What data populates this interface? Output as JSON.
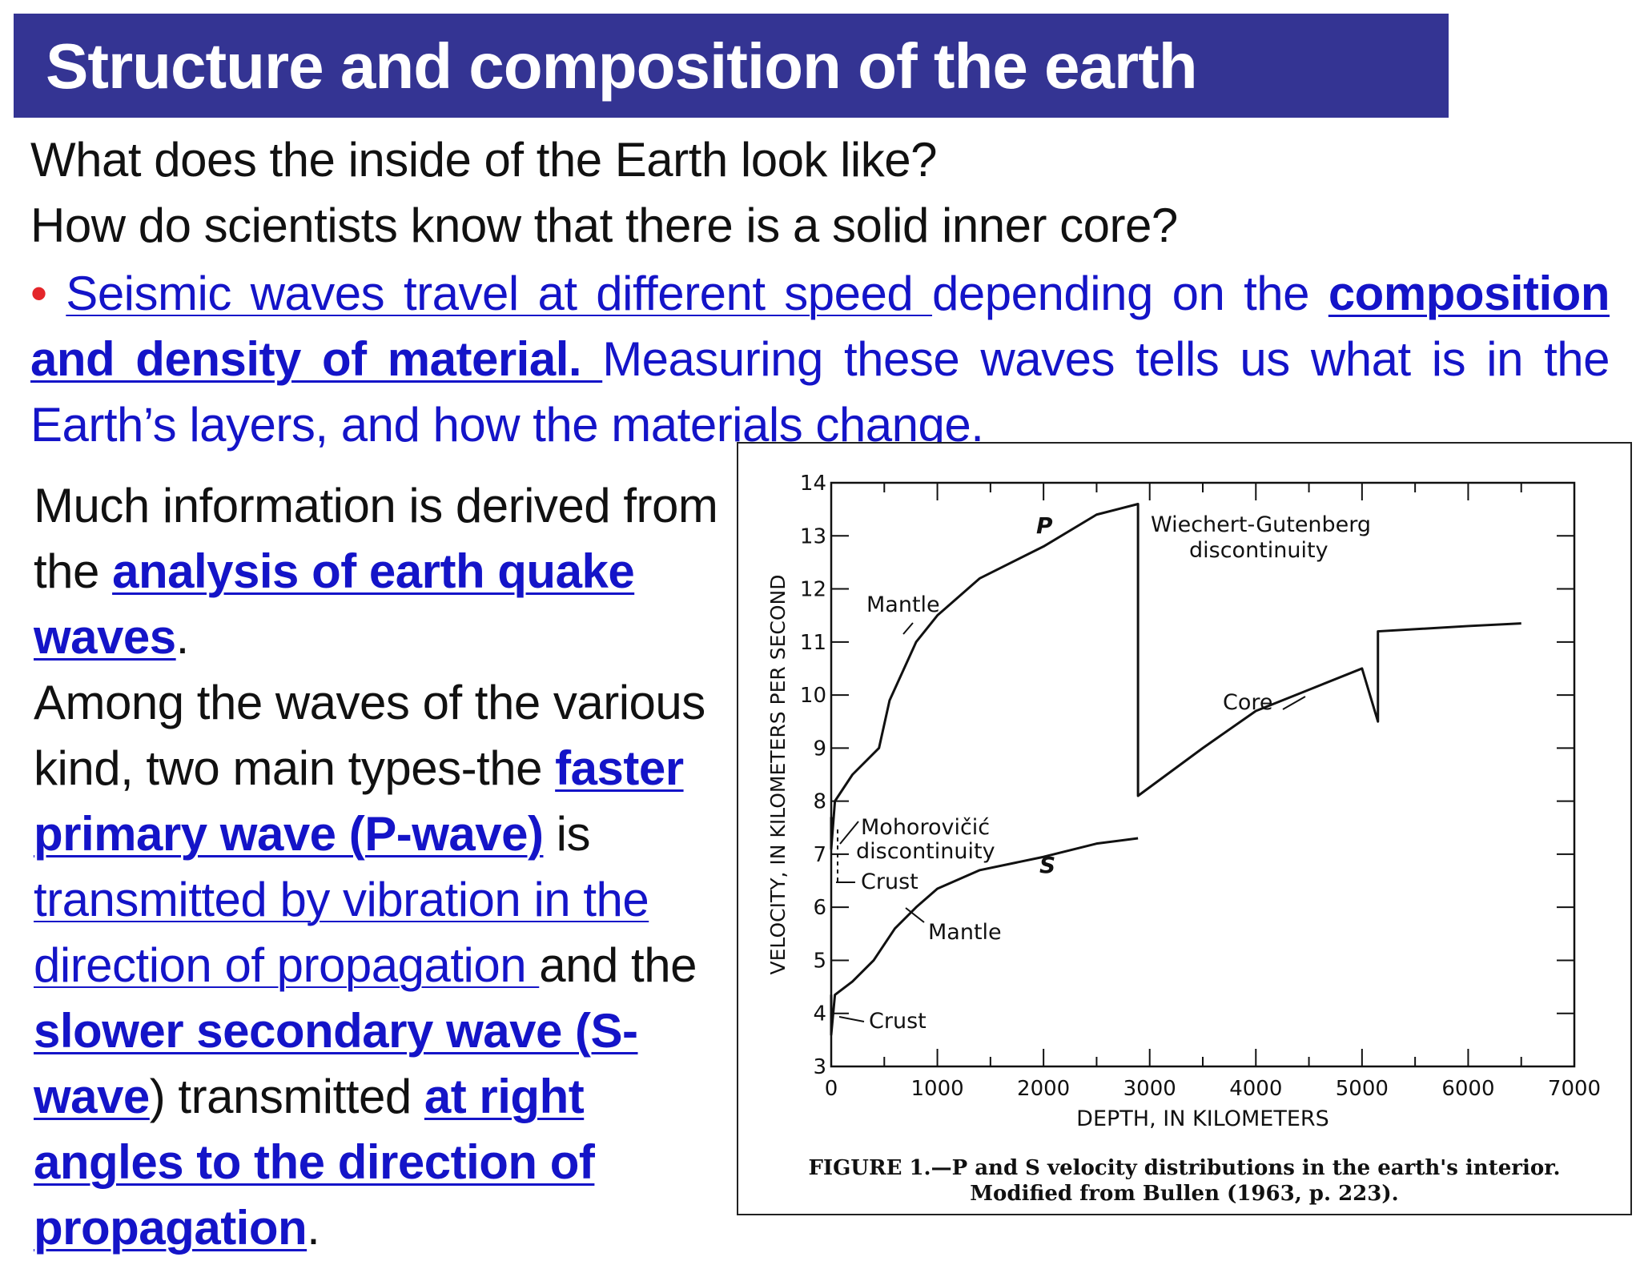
{
  "slide": {
    "title": "Structure and composition of the earth",
    "question1": "What does the inside of the Earth look like?",
    "question2": "How do scientists know that there is a solid inner core?",
    "bullet": {
      "marker": "•",
      "p1": "Seismic waves travel at different speed ",
      "p2": "depending on the ",
      "p3": "composition and density of material. ",
      "p4": "Measuring these waves tells us what is in the Earth’s layers, and how the materials change."
    },
    "left_text": {
      "t1": "Much information is derived from the ",
      "t2": "analysis of earth quake waves",
      "t3": ".",
      "t4": "Among the waves of the various kind, two main types-the ",
      "t5": "faster primary wave (P-wave)",
      "t6": " is ",
      "t7": "transmitted by vibration in the direction of propagation ",
      "t8": "and the ",
      "t9": "slower secondary wave (S-wave",
      "t10": ") transmitted ",
      "t11": "at right angles to the direction of propagation",
      "t12": "."
    },
    "colors": {
      "title_bar": "#343493",
      "body_blue": "#1414c8",
      "bullet_red": "#e4262a",
      "text_black": "#111111"
    }
  },
  "chart_data": {
    "type": "line",
    "xlabel": "DEPTH, IN KILOMETERS",
    "ylabel": "VELOCITY, IN KILOMETERS PER SECOND",
    "xlim": [
      0,
      7000
    ],
    "ylim": [
      3,
      14
    ],
    "x_ticks": [
      0,
      1000,
      2000,
      3000,
      4000,
      5000,
      6000,
      7000
    ],
    "y_ticks": [
      3,
      4,
      5,
      6,
      7,
      8,
      9,
      10,
      11,
      12,
      13,
      14
    ],
    "grid": false,
    "series": [
      {
        "name": "P",
        "x": [
          0,
          0,
          35,
          200,
          450,
          550,
          800,
          1000,
          1400,
          2000,
          2500,
          2890,
          2890,
          3500,
          4000,
          4500,
          5000,
          5150,
          5150,
          6000,
          6500
        ],
        "y": [
          7.7,
          7.1,
          8.0,
          8.5,
          9.0,
          9.9,
          11.0,
          11.5,
          12.2,
          12.8,
          13.4,
          13.6,
          8.1,
          9.0,
          9.7,
          10.1,
          10.5,
          9.5,
          11.2,
          11.3,
          11.35
        ]
      },
      {
        "name": "S",
        "x": [
          0,
          0,
          35,
          200,
          400,
          600,
          800,
          1000,
          1400,
          2000,
          2500,
          2890
        ],
        "y": [
          4.35,
          3.6,
          4.35,
          4.6,
          5.0,
          5.6,
          6.0,
          6.35,
          6.7,
          6.95,
          7.2,
          7.3
        ]
      }
    ],
    "annotations": {
      "p_label": "P",
      "s_label": "S",
      "mantle_p": "Mantle",
      "mantle_s": "Mantle",
      "wg1": "Wiechert-Gutenberg",
      "wg2": "discontinuity",
      "core": "Core",
      "moho1": "Mohorovičić",
      "moho2": "discontinuity",
      "crust_p": "Crust",
      "crust_s": "Crust"
    },
    "caption1": "FIGURE 1.—P and S velocity distributions in the earth's interior.",
    "caption2": "Modified from Bullen (1963, p. 223)."
  }
}
